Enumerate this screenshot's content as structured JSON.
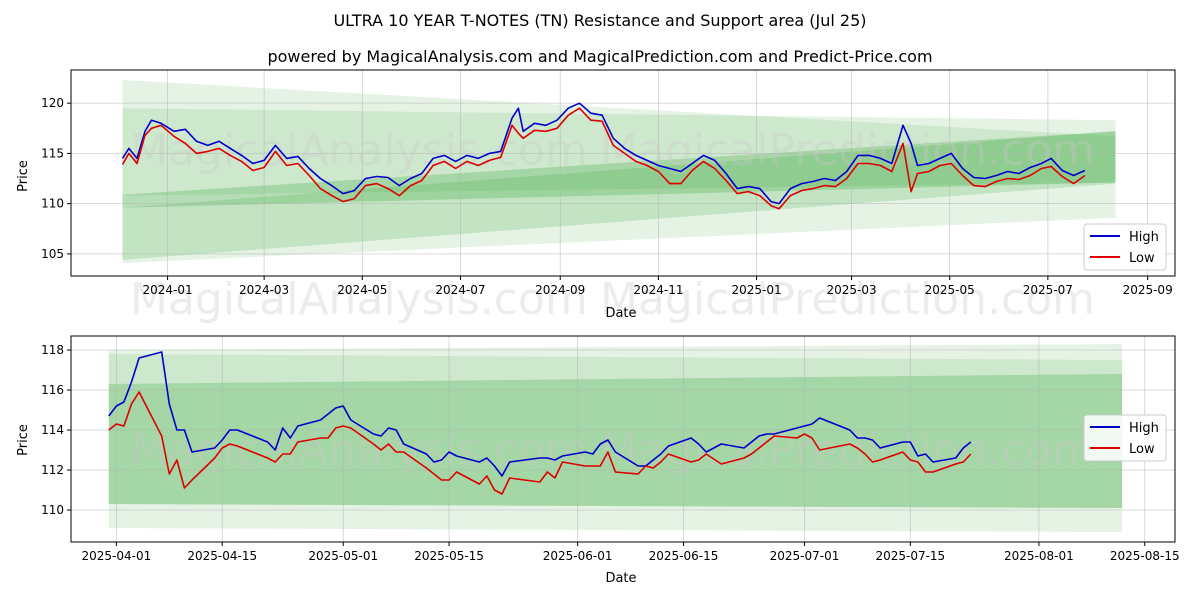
{
  "title": "ULTRA 10 YEAR T-NOTES (TN) Resistance and Support area (Jul 25)",
  "subtitle": "powered by MagicalAnalysis.com and MagicalPrediction.com and Predict-Price.com",
  "watermarks": [
    "MagicalAnalysis.com",
    "MagicalPrediction.com"
  ],
  "colors": {
    "high": "#0000cc",
    "low": "#dd0000",
    "band": "#2ca02c",
    "grid": "#b0b0b0"
  },
  "chart_data": [
    {
      "type": "line",
      "xlabel": "Date",
      "ylabel": "Price",
      "x_ticks": [
        "2024-01",
        "2024-03",
        "2024-05",
        "2024-07",
        "2024-09",
        "2024-11",
        "2025-01",
        "2025-03",
        "2025-05",
        "2025-07",
        "2025-09"
      ],
      "y_ticks": [
        105,
        110,
        115,
        120
      ],
      "xlim": [
        "2023-11-02",
        "2025-09-18"
      ],
      "ylim": [
        102.8,
        123.3
      ],
      "grid": true,
      "legend": "lower right",
      "series": [
        {
          "name": "High",
          "x": [
            "2023-12-04",
            "2023-12-08",
            "2023-12-13",
            "2023-12-18",
            "2023-12-22",
            "2023-12-28",
            "2024-01-05",
            "2024-01-12",
            "2024-01-19",
            "2024-01-26",
            "2024-02-02",
            "2024-02-09",
            "2024-02-16",
            "2024-02-23",
            "2024-03-01",
            "2024-03-08",
            "2024-03-15",
            "2024-03-22",
            "2024-03-29",
            "2024-04-05",
            "2024-04-12",
            "2024-04-19",
            "2024-04-26",
            "2024-05-03",
            "2024-05-10",
            "2024-05-17",
            "2024-05-24",
            "2024-05-31",
            "2024-06-07",
            "2024-06-14",
            "2024-06-21",
            "2024-06-28",
            "2024-07-05",
            "2024-07-12",
            "2024-07-19",
            "2024-07-26",
            "2024-08-02",
            "2024-08-06",
            "2024-08-09",
            "2024-08-16",
            "2024-08-23",
            "2024-08-30",
            "2024-09-06",
            "2024-09-13",
            "2024-09-20",
            "2024-09-27",
            "2024-10-04",
            "2024-10-11",
            "2024-10-18",
            "2024-10-25",
            "2024-11-01",
            "2024-11-08",
            "2024-11-15",
            "2024-11-22",
            "2024-11-29",
            "2024-12-06",
            "2024-12-13",
            "2024-12-20",
            "2024-12-27",
            "2025-01-03",
            "2025-01-10",
            "2025-01-15",
            "2025-01-22",
            "2025-01-29",
            "2025-02-05",
            "2025-02-12",
            "2025-02-19",
            "2025-02-26",
            "2025-03-05",
            "2025-03-12",
            "2025-03-19",
            "2025-03-26",
            "2025-04-02",
            "2025-04-07",
            "2025-04-11",
            "2025-04-18",
            "2025-04-25",
            "2025-05-02",
            "2025-05-09",
            "2025-05-16",
            "2025-05-23",
            "2025-05-30",
            "2025-06-06",
            "2025-06-13",
            "2025-06-20",
            "2025-06-27",
            "2025-07-03",
            "2025-07-10",
            "2025-07-17",
            "2025-07-24"
          ],
          "values": [
            114.5,
            115.5,
            114.5,
            117.2,
            118.3,
            118.0,
            117.2,
            117.4,
            116.2,
            115.8,
            116.2,
            115.5,
            114.8,
            114.0,
            114.3,
            115.8,
            114.5,
            114.7,
            113.5,
            112.5,
            111.8,
            111.0,
            111.3,
            112.5,
            112.7,
            112.6,
            111.8,
            112.5,
            113.0,
            114.5,
            114.8,
            114.2,
            114.8,
            114.5,
            115.0,
            115.2,
            118.5,
            119.5,
            117.2,
            118.0,
            117.8,
            118.3,
            119.5,
            120.0,
            119.0,
            118.8,
            116.5,
            115.5,
            114.8,
            114.3,
            113.8,
            113.5,
            113.2,
            114.0,
            114.8,
            114.3,
            113.0,
            111.5,
            111.7,
            111.5,
            110.2,
            110.0,
            111.5,
            112.0,
            112.2,
            112.5,
            112.3,
            113.2,
            114.8,
            114.8,
            114.5,
            114.0,
            117.8,
            116.0,
            113.8,
            114.0,
            114.5,
            115.0,
            113.5,
            112.6,
            112.5,
            112.8,
            113.2,
            113.0,
            113.6,
            114.0,
            114.5,
            113.3,
            112.8,
            113.3
          ]
        },
        {
          "name": "Low",
          "x": [
            "2023-12-04",
            "2023-12-08",
            "2023-12-13",
            "2023-12-18",
            "2023-12-22",
            "2023-12-28",
            "2024-01-05",
            "2024-01-12",
            "2024-01-19",
            "2024-01-26",
            "2024-02-02",
            "2024-02-09",
            "2024-02-16",
            "2024-02-23",
            "2024-03-01",
            "2024-03-08",
            "2024-03-15",
            "2024-03-22",
            "2024-03-29",
            "2024-04-05",
            "2024-04-12",
            "2024-04-19",
            "2024-04-26",
            "2024-05-03",
            "2024-05-10",
            "2024-05-17",
            "2024-05-24",
            "2024-05-31",
            "2024-06-07",
            "2024-06-14",
            "2024-06-21",
            "2024-06-28",
            "2024-07-05",
            "2024-07-12",
            "2024-07-19",
            "2024-07-26",
            "2024-08-02",
            "2024-08-06",
            "2024-08-09",
            "2024-08-16",
            "2024-08-23",
            "2024-08-30",
            "2024-09-06",
            "2024-09-13",
            "2024-09-20",
            "2024-09-27",
            "2024-10-04",
            "2024-10-11",
            "2024-10-18",
            "2024-10-25",
            "2024-11-01",
            "2024-11-08",
            "2024-11-15",
            "2024-11-22",
            "2024-11-29",
            "2024-12-06",
            "2024-12-13",
            "2024-12-20",
            "2024-12-27",
            "2025-01-03",
            "2025-01-10",
            "2025-01-15",
            "2025-01-22",
            "2025-01-29",
            "2025-02-05",
            "2025-02-12",
            "2025-02-19",
            "2025-02-26",
            "2025-03-05",
            "2025-03-12",
            "2025-03-19",
            "2025-03-26",
            "2025-04-02",
            "2025-04-07",
            "2025-04-11",
            "2025-04-18",
            "2025-04-25",
            "2025-05-02",
            "2025-05-09",
            "2025-05-16",
            "2025-05-23",
            "2025-05-30",
            "2025-06-06",
            "2025-06-13",
            "2025-06-20",
            "2025-06-27",
            "2025-07-03",
            "2025-07-10",
            "2025-07-17",
            "2025-07-24"
          ],
          "values": [
            113.9,
            115.0,
            114.0,
            116.8,
            117.5,
            117.8,
            116.7,
            116.0,
            115.0,
            115.2,
            115.5,
            114.8,
            114.2,
            113.3,
            113.6,
            115.2,
            113.8,
            114.0,
            112.8,
            111.5,
            110.8,
            110.2,
            110.5,
            111.8,
            112.0,
            111.5,
            110.8,
            111.8,
            112.3,
            113.8,
            114.2,
            113.5,
            114.2,
            113.8,
            114.3,
            114.6,
            117.8,
            117.0,
            116.5,
            117.3,
            117.2,
            117.5,
            118.8,
            119.5,
            118.3,
            118.2,
            115.8,
            115.0,
            114.2,
            113.8,
            113.2,
            112.0,
            112.0,
            113.3,
            114.2,
            113.5,
            112.3,
            111.0,
            111.2,
            110.8,
            109.8,
            109.5,
            110.8,
            111.3,
            111.5,
            111.8,
            111.7,
            112.5,
            114.0,
            114.0,
            113.8,
            113.2,
            116.0,
            111.2,
            113.0,
            113.2,
            113.8,
            114.0,
            112.8,
            111.8,
            111.7,
            112.2,
            112.5,
            112.4,
            112.8,
            113.5,
            113.7,
            112.7,
            112.0,
            112.8
          ]
        }
      ]
    },
    {
      "type": "line",
      "xlabel": "Date",
      "ylabel": "Price",
      "x_ticks": [
        "2025-04-01",
        "2025-04-15",
        "2025-05-01",
        "2025-05-15",
        "2025-06-01",
        "2025-06-15",
        "2025-07-01",
        "2025-07-15",
        "2025-08-01",
        "2025-08-15"
      ],
      "y_ticks": [
        110,
        112,
        114,
        116,
        118
      ],
      "xlim": [
        "2025-03-26",
        "2025-08-19"
      ],
      "ylim": [
        108.4,
        118.7
      ],
      "grid": true,
      "legend": "center right",
      "series": [
        {
          "name": "High",
          "x": [
            "2025-03-31",
            "2025-04-01",
            "2025-04-02",
            "2025-04-03",
            "2025-04-04",
            "2025-04-07",
            "2025-04-08",
            "2025-04-09",
            "2025-04-10",
            "2025-04-11",
            "2025-04-14",
            "2025-04-15",
            "2025-04-16",
            "2025-04-17",
            "2025-04-21",
            "2025-04-22",
            "2025-04-23",
            "2025-04-24",
            "2025-04-25",
            "2025-04-28",
            "2025-04-29",
            "2025-04-30",
            "2025-05-01",
            "2025-05-02",
            "2025-05-05",
            "2025-05-06",
            "2025-05-07",
            "2025-05-08",
            "2025-05-09",
            "2025-05-12",
            "2025-05-13",
            "2025-05-14",
            "2025-05-15",
            "2025-05-16",
            "2025-05-19",
            "2025-05-20",
            "2025-05-21",
            "2025-05-22",
            "2025-05-23",
            "2025-05-27",
            "2025-05-28",
            "2025-05-29",
            "2025-05-30",
            "2025-06-02",
            "2025-06-03",
            "2025-06-04",
            "2025-06-05",
            "2025-06-06",
            "2025-06-09",
            "2025-06-10",
            "2025-06-11",
            "2025-06-12",
            "2025-06-13",
            "2025-06-16",
            "2025-06-17",
            "2025-06-18",
            "2025-06-20",
            "2025-06-23",
            "2025-06-24",
            "2025-06-25",
            "2025-06-26",
            "2025-06-27",
            "2025-06-30",
            "2025-07-01",
            "2025-07-02",
            "2025-07-03",
            "2025-07-07",
            "2025-07-08",
            "2025-07-09",
            "2025-07-10",
            "2025-07-11",
            "2025-07-14",
            "2025-07-15",
            "2025-07-16",
            "2025-07-17",
            "2025-07-18",
            "2025-07-21",
            "2025-07-22",
            "2025-07-23"
          ],
          "values": [
            114.7,
            115.2,
            115.4,
            116.4,
            117.6,
            117.9,
            115.3,
            114.0,
            114.0,
            112.9,
            113.1,
            113.5,
            114.0,
            114.0,
            113.4,
            113.0,
            114.1,
            113.6,
            114.2,
            114.5,
            114.8,
            115.1,
            115.2,
            114.5,
            113.8,
            113.7,
            114.1,
            114.0,
            113.3,
            112.8,
            112.4,
            112.5,
            112.9,
            112.7,
            112.4,
            112.6,
            112.2,
            111.7,
            112.4,
            112.6,
            112.6,
            112.5,
            112.7,
            112.9,
            112.8,
            113.3,
            113.5,
            112.9,
            112.2,
            112.2,
            112.5,
            112.8,
            113.2,
            113.6,
            113.3,
            112.9,
            113.3,
            113.1,
            113.4,
            113.7,
            113.8,
            113.8,
            114.1,
            114.2,
            114.3,
            114.6,
            114.0,
            113.6,
            113.6,
            113.5,
            113.1,
            113.4,
            113.4,
            112.7,
            112.8,
            112.4,
            112.6,
            113.1,
            113.4
          ]
        },
        {
          "name": "Low",
          "x": [
            "2025-03-31",
            "2025-04-01",
            "2025-04-02",
            "2025-04-03",
            "2025-04-04",
            "2025-04-07",
            "2025-04-08",
            "2025-04-09",
            "2025-04-10",
            "2025-04-11",
            "2025-04-14",
            "2025-04-15",
            "2025-04-16",
            "2025-04-17",
            "2025-04-21",
            "2025-04-22",
            "2025-04-23",
            "2025-04-24",
            "2025-04-25",
            "2025-04-28",
            "2025-04-29",
            "2025-04-30",
            "2025-05-01",
            "2025-05-02",
            "2025-05-05",
            "2025-05-06",
            "2025-05-07",
            "2025-05-08",
            "2025-05-09",
            "2025-05-12",
            "2025-05-13",
            "2025-05-14",
            "2025-05-15",
            "2025-05-16",
            "2025-05-19",
            "2025-05-20",
            "2025-05-21",
            "2025-05-22",
            "2025-05-23",
            "2025-05-27",
            "2025-05-28",
            "2025-05-29",
            "2025-05-30",
            "2025-06-02",
            "2025-06-03",
            "2025-06-04",
            "2025-06-05",
            "2025-06-06",
            "2025-06-09",
            "2025-06-10",
            "2025-06-11",
            "2025-06-12",
            "2025-06-13",
            "2025-06-16",
            "2025-06-17",
            "2025-06-18",
            "2025-06-20",
            "2025-06-23",
            "2025-06-24",
            "2025-06-25",
            "2025-06-26",
            "2025-06-27",
            "2025-06-30",
            "2025-07-01",
            "2025-07-02",
            "2025-07-03",
            "2025-07-07",
            "2025-07-08",
            "2025-07-09",
            "2025-07-10",
            "2025-07-11",
            "2025-07-14",
            "2025-07-15",
            "2025-07-16",
            "2025-07-17",
            "2025-07-18",
            "2025-07-21",
            "2025-07-22",
            "2025-07-23"
          ],
          "values": [
            114.0,
            114.3,
            114.2,
            115.3,
            115.9,
            113.7,
            111.8,
            112.5,
            111.1,
            111.5,
            112.6,
            113.1,
            113.3,
            113.2,
            112.6,
            112.4,
            112.8,
            112.8,
            113.4,
            113.6,
            113.6,
            114.1,
            114.2,
            114.1,
            113.3,
            113.0,
            113.3,
            112.9,
            112.9,
            112.1,
            111.8,
            111.5,
            111.5,
            111.9,
            111.3,
            111.7,
            111.0,
            110.8,
            111.6,
            111.4,
            111.9,
            111.6,
            112.4,
            112.2,
            112.2,
            112.2,
            112.9,
            111.9,
            111.8,
            112.2,
            112.1,
            112.4,
            112.8,
            112.4,
            112.5,
            112.8,
            112.3,
            112.6,
            112.8,
            113.1,
            113.4,
            113.7,
            113.6,
            113.8,
            113.6,
            113.0,
            113.3,
            113.1,
            112.8,
            112.4,
            112.5,
            112.9,
            112.5,
            112.4,
            111.9,
            111.9,
            112.3,
            112.4,
            112.8
          ]
        }
      ]
    }
  ]
}
